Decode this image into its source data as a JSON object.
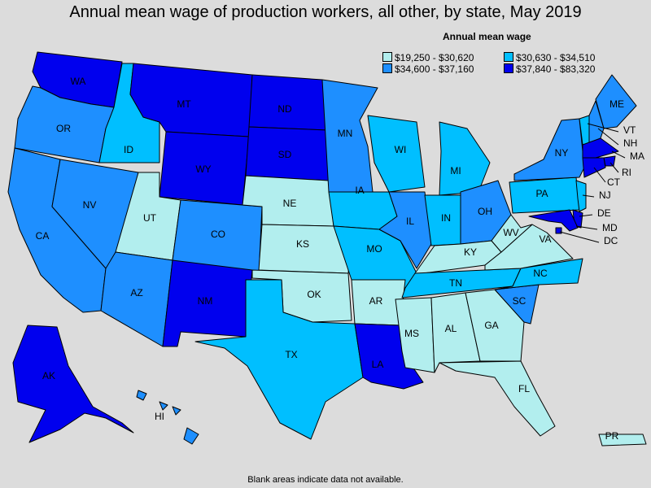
{
  "title": "Annual mean wage of production workers, all other, by state, May 2019",
  "footnote": "Blank areas indicate data not available.",
  "legend": {
    "title": "Annual mean wage",
    "bins": [
      {
        "label": "$19,250 - $30,620",
        "color": "#b2eeee"
      },
      {
        "label": "$30,630 - $34,510",
        "color": "#00bfff"
      },
      {
        "label": "$34,600 - $37,160",
        "color": "#1e8fff"
      },
      {
        "label": "$37,840 - $83,320",
        "color": "#0000ee"
      }
    ]
  },
  "states": [
    {
      "abbr": "WA",
      "bin": 3
    },
    {
      "abbr": "OR",
      "bin": 2
    },
    {
      "abbr": "CA",
      "bin": 2
    },
    {
      "abbr": "NV",
      "bin": 2
    },
    {
      "abbr": "ID",
      "bin": 1
    },
    {
      "abbr": "MT",
      "bin": 3
    },
    {
      "abbr": "WY",
      "bin": 3
    },
    {
      "abbr": "UT",
      "bin": 0
    },
    {
      "abbr": "AZ",
      "bin": 2
    },
    {
      "abbr": "CO",
      "bin": 2
    },
    {
      "abbr": "NM",
      "bin": 3
    },
    {
      "abbr": "ND",
      "bin": 3
    },
    {
      "abbr": "SD",
      "bin": 3
    },
    {
      "abbr": "NE",
      "bin": 0
    },
    {
      "abbr": "KS",
      "bin": 0
    },
    {
      "abbr": "OK",
      "bin": 0
    },
    {
      "abbr": "TX",
      "bin": 1
    },
    {
      "abbr": "MN",
      "bin": 2
    },
    {
      "abbr": "IA",
      "bin": 1
    },
    {
      "abbr": "MO",
      "bin": 1
    },
    {
      "abbr": "AR",
      "bin": 0
    },
    {
      "abbr": "LA",
      "bin": 3
    },
    {
      "abbr": "WI",
      "bin": 1
    },
    {
      "abbr": "IL",
      "bin": 2
    },
    {
      "abbr": "MI",
      "bin": 1
    },
    {
      "abbr": "IN",
      "bin": 1
    },
    {
      "abbr": "OH",
      "bin": 2
    },
    {
      "abbr": "KY",
      "bin": 0
    },
    {
      "abbr": "TN",
      "bin": 1
    },
    {
      "abbr": "MS",
      "bin": 0
    },
    {
      "abbr": "AL",
      "bin": 0
    },
    {
      "abbr": "GA",
      "bin": 0
    },
    {
      "abbr": "FL",
      "bin": 0
    },
    {
      "abbr": "SC",
      "bin": 2
    },
    {
      "abbr": "NC",
      "bin": 1
    },
    {
      "abbr": "VA",
      "bin": 0
    },
    {
      "abbr": "WV",
      "bin": 0
    },
    {
      "abbr": "PA",
      "bin": 1
    },
    {
      "abbr": "NY",
      "bin": 2
    },
    {
      "abbr": "ME",
      "bin": 2
    },
    {
      "abbr": "VT",
      "bin": 1
    },
    {
      "abbr": "NH",
      "bin": 2
    },
    {
      "abbr": "MA",
      "bin": 3
    },
    {
      "abbr": "RI",
      "bin": 3
    },
    {
      "abbr": "CT",
      "bin": 3
    },
    {
      "abbr": "NJ",
      "bin": 1
    },
    {
      "abbr": "DE",
      "bin": 3
    },
    {
      "abbr": "MD",
      "bin": 3
    },
    {
      "abbr": "DC",
      "bin": 3
    },
    {
      "abbr": "AK",
      "bin": 3
    },
    {
      "abbr": "HI",
      "bin": 2
    },
    {
      "abbr": "PR",
      "bin": 0
    }
  ]
}
